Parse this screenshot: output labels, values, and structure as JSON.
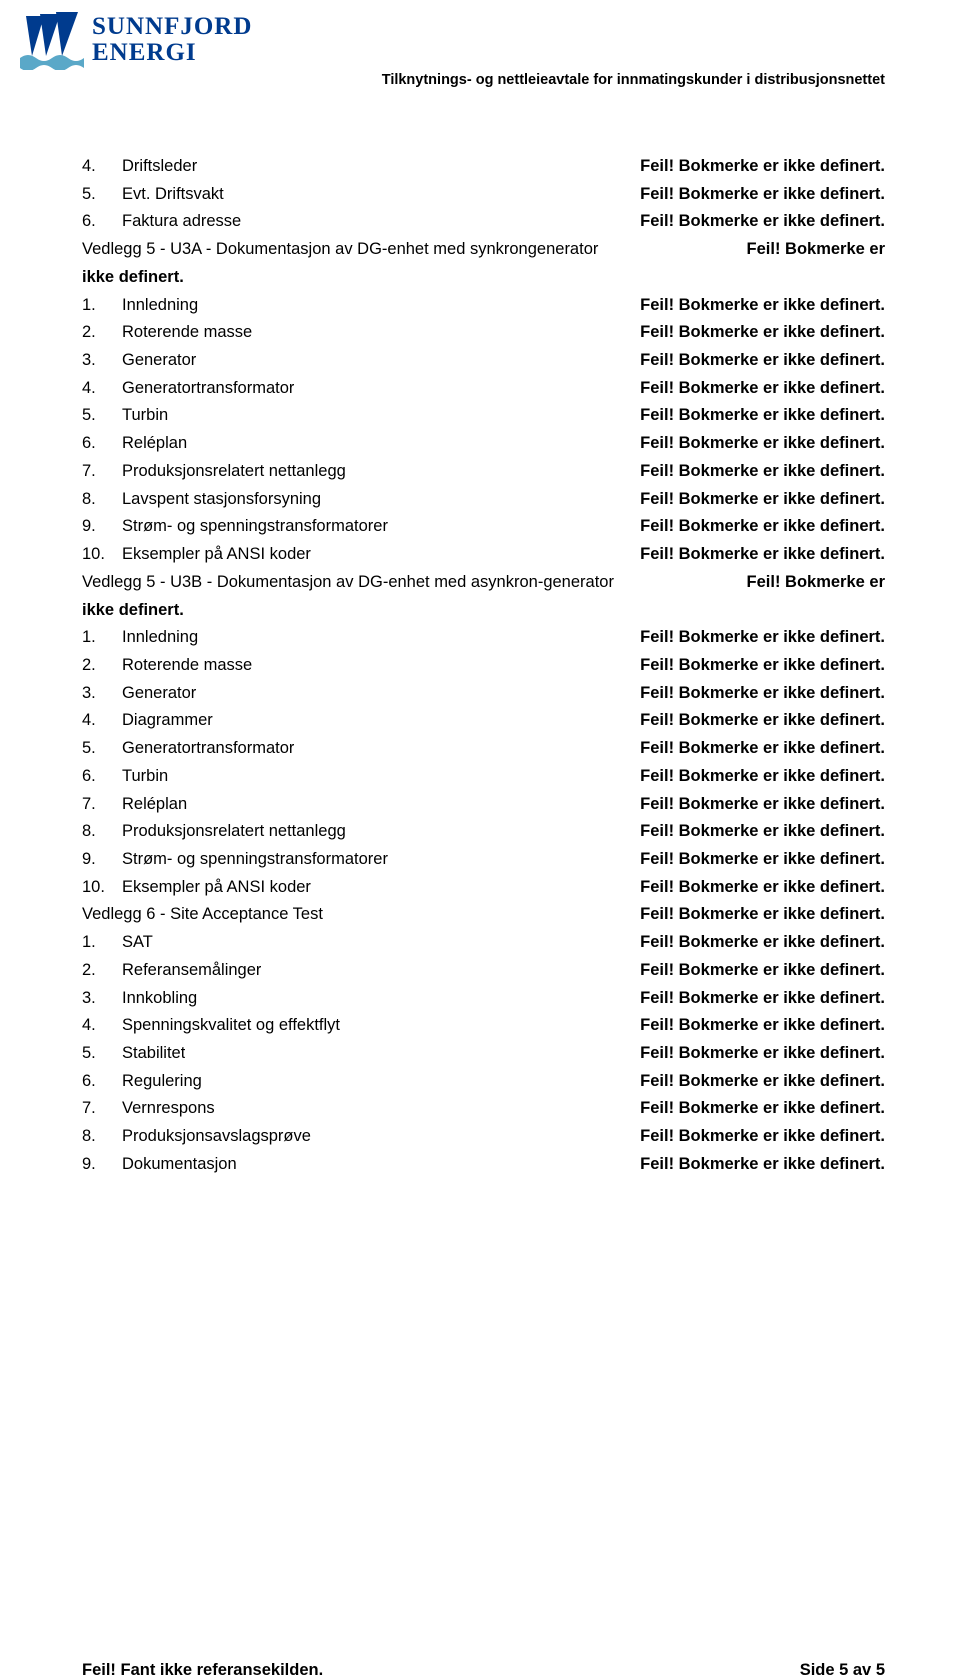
{
  "header": {
    "brand_line1": "SUNNFJORD",
    "brand_line2": "ENERGI",
    "doc_title": "Tilknytnings- og nettleieavtale for innmatingskunder i distribusjonsnettet"
  },
  "logo": {
    "water_color": "#5aa8c8",
    "line_color": "#003b8e"
  },
  "err": "Feil! Bokmerke er ikke definert.",
  "err_head": "Feil! Bokmerke er",
  "err_tail": "ikke definert.",
  "toc": [
    {
      "type": "numbered",
      "num": "4.",
      "label": "Driftsleder"
    },
    {
      "type": "numbered",
      "num": "5.",
      "label": "Evt. Driftsvakt"
    },
    {
      "type": "numbered",
      "num": "6.",
      "label": "Faktura adresse"
    },
    {
      "type": "heading-multi",
      "label": "Vedlegg 5 - U3A - Dokumentasjon av DG-enhet med synkrongenerator"
    },
    {
      "type": "numbered",
      "num": "1.",
      "label": "Innledning"
    },
    {
      "type": "numbered",
      "num": "2.",
      "label": "Roterende masse"
    },
    {
      "type": "numbered",
      "num": "3.",
      "label": "Generator"
    },
    {
      "type": "numbered",
      "num": "4.",
      "label": "Generatortransformator"
    },
    {
      "type": "numbered",
      "num": "5.",
      "label": "Turbin"
    },
    {
      "type": "numbered",
      "num": "6.",
      "label": "Reléplan"
    },
    {
      "type": "numbered",
      "num": "7.",
      "label": "Produksjonsrelatert nettanlegg"
    },
    {
      "type": "numbered",
      "num": "8.",
      "label": "Lavspent stasjonsforsyning"
    },
    {
      "type": "numbered",
      "num": "9.",
      "label": "Strøm- og spenningstransformatorer"
    },
    {
      "type": "numbered",
      "num": "10.",
      "label": "Eksempler på ANSI koder"
    },
    {
      "type": "heading-multi",
      "label": "Vedlegg 5 - U3B - Dokumentasjon av DG-enhet med asynkron-generator"
    },
    {
      "type": "numbered",
      "num": "1.",
      "label": "Innledning"
    },
    {
      "type": "numbered",
      "num": "2.",
      "label": "Roterende masse"
    },
    {
      "type": "numbered",
      "num": "3.",
      "label": "Generator"
    },
    {
      "type": "numbered",
      "num": "4.",
      "label": "Diagrammer"
    },
    {
      "type": "numbered",
      "num": "5.",
      "label": "Generatortransformator"
    },
    {
      "type": "numbered",
      "num": "6.",
      "label": "Turbin"
    },
    {
      "type": "numbered",
      "num": "7.",
      "label": "Reléplan"
    },
    {
      "type": "numbered",
      "num": "8.",
      "label": "Produksjonsrelatert nettanlegg"
    },
    {
      "type": "numbered",
      "num": "9.",
      "label": "Strøm- og spenningstransformatorer"
    },
    {
      "type": "numbered",
      "num": "10.",
      "label": "Eksempler på ANSI koder"
    },
    {
      "type": "heading",
      "label": "Vedlegg 6 - Site Acceptance Test"
    },
    {
      "type": "numbered",
      "num": "1.",
      "label": "SAT"
    },
    {
      "type": "numbered",
      "num": "2.",
      "label": "Referansemålinger"
    },
    {
      "type": "numbered",
      "num": "3.",
      "label": "Innkobling"
    },
    {
      "type": "numbered",
      "num": "4.",
      "label": "Spenningskvalitet og effektflyt"
    },
    {
      "type": "numbered",
      "num": "5.",
      "label": "Stabilitet"
    },
    {
      "type": "numbered",
      "num": "6.",
      "label": "Regulering"
    },
    {
      "type": "numbered",
      "num": "7.",
      "label": "Vernrespons"
    },
    {
      "type": "numbered",
      "num": "8.",
      "label": "Produksjonsavslagsprøve"
    },
    {
      "type": "numbered",
      "num": "9.",
      "label": "Dokumentasjon"
    }
  ],
  "footer": {
    "left": "Feil! Fant ikke referansekilden.",
    "right": "Side 5 av 5"
  }
}
